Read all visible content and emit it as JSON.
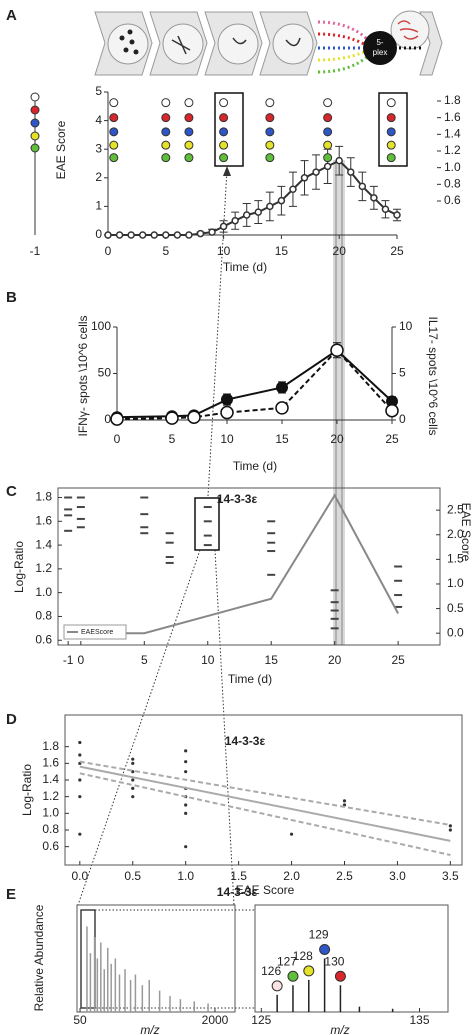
{
  "chart_data": [
    {
      "type": "line",
      "panel": "A",
      "xlabel": "Time (d)",
      "ylabel": "EAE Score",
      "xlim": [
        0,
        25
      ],
      "xticks": [
        0,
        5,
        10,
        15,
        20,
        25
      ],
      "ylim": [
        0,
        5
      ],
      "yticks": [
        0,
        1,
        2,
        3,
        4,
        5
      ],
      "y2lim": [
        0.6,
        1.8
      ],
      "y2ticks": [
        0.6,
        0.8,
        {
          "value": 1.0,
          "label": "1.0"
        },
        1.2,
        1.4,
        1.6,
        1.8
      ],
      "offscale_tick": -1,
      "schematic_label": [
        "5-",
        "plex"
      ],
      "series": [
        {
          "type": "line",
          "color": "#333333",
          "marker": "open",
          "x": [
            0,
            1,
            2,
            3,
            4,
            5,
            6,
            7,
            8,
            9,
            10,
            11,
            12,
            13,
            14,
            15,
            16,
            17,
            18,
            19,
            20,
            21,
            22,
            23,
            24,
            25
          ],
          "values": [
            0,
            0,
            0,
            0,
            0,
            0,
            0,
            0,
            0.05,
            0.1,
            0.3,
            0.5,
            0.7,
            0.8,
            1.0,
            1.2,
            1.6,
            2.0,
            2.2,
            2.4,
            2.6,
            2.2,
            1.7,
            1.3,
            0.9,
            0.7
          ],
          "errors": [
            0,
            0,
            0,
            0,
            0,
            0,
            0,
            0,
            0.05,
            0.1,
            0.2,
            0.3,
            0.4,
            0.4,
            0.5,
            0.5,
            0.6,
            0.6,
            0.6,
            0.6,
            0.5,
            0.5,
            0.5,
            0.4,
            0.3,
            0.2
          ]
        },
        {
          "type": "scatter",
          "color": "#ffffff",
          "marker": "ring",
          "axis": "y2",
          "x": [
            0.5,
            5,
            7,
            10,
            14,
            19,
            24.5
          ],
          "values": [
            1.78,
            1.78,
            1.78,
            1.78,
            1.78,
            1.78,
            1.78
          ]
        },
        {
          "type": "scatter",
          "color": "#d8262a",
          "marker": "ring",
          "axis": "y2",
          "x": [
            0.5,
            5,
            7,
            10,
            14,
            19,
            24.5
          ],
          "values": [
            1.6,
            1.6,
            1.6,
            1.6,
            1.6,
            1.6,
            1.6
          ]
        },
        {
          "type": "scatter",
          "color": "#2f56c8",
          "marker": "ring",
          "axis": "y2",
          "x": [
            0.5,
            5,
            7,
            10,
            14,
            19,
            24.5
          ],
          "values": [
            1.43,
            1.43,
            1.43,
            1.43,
            1.43,
            1.43,
            1.43
          ]
        },
        {
          "type": "scatter",
          "color": "#e5e22a",
          "marker": "ring",
          "axis": "y2",
          "x": [
            0.5,
            5,
            7,
            10,
            14,
            19,
            24.5
          ],
          "values": [
            1.27,
            1.27,
            1.27,
            1.27,
            1.27,
            1.27,
            1.27
          ]
        },
        {
          "type": "scatter",
          "color": "#5fbf3a",
          "marker": "ring",
          "axis": "y2",
          "x": [
            0.5,
            5,
            7,
            10,
            14,
            19,
            24.5
          ],
          "values": [
            1.12,
            1.12,
            1.12,
            1.12,
            1.12,
            1.12,
            1.12
          ]
        }
      ]
    },
    {
      "type": "line",
      "panel": "B",
      "xlabel": "Time (d)",
      "ylabel": "IFNγ- spots \\10^6 cells",
      "y2label": "IL17- spots \\10^6 cells",
      "xlim": [
        0,
        25
      ],
      "xticks": [
        0,
        5,
        10,
        15,
        20,
        25
      ],
      "ylim": [
        0,
        100
      ],
      "yticks": [
        0,
        50,
        100
      ],
      "y2lim": [
        0,
        10
      ],
      "y2ticks": [
        0,
        5,
        10
      ],
      "series": [
        {
          "color": "#111111",
          "marker": "filled",
          "x": [
            0,
            5,
            7,
            10,
            15,
            20,
            25
          ],
          "values": [
            3,
            4,
            5,
            22,
            35,
            75,
            20
          ],
          "errors": [
            3,
            3,
            3,
            6,
            6,
            8,
            5
          ]
        },
        {
          "color": "#111111",
          "dash": true,
          "marker": "open",
          "axis": "y2",
          "x": [
            0,
            5,
            7,
            10,
            15,
            20,
            25
          ],
          "values": [
            0.1,
            0.2,
            0.3,
            0.8,
            1.3,
            7.5,
            1.0
          ]
        }
      ]
    },
    {
      "type": "scatter",
      "panel": "C",
      "title": "14-3-3ε",
      "xlabel": "Time (d)",
      "ylabel": "Log-Ratio",
      "y2label": "EAE Score",
      "xlim": [
        -1.8,
        28.3
      ],
      "xticks": [
        -1,
        0,
        5,
        10,
        15,
        20,
        25
      ],
      "ylim": [
        0.56,
        1.88
      ],
      "yticks": [
        0.6,
        0.8,
        {
          "value": 1.0,
          "label": "1.0"
        },
        1.2,
        1.4,
        1.6,
        1.8
      ],
      "y2lim": [
        -0.24,
        2.95
      ],
      "y2ticks": [
        {
          "value": 0.0,
          "label": "0.0"
        },
        0.5,
        {
          "value": 1.0,
          "label": "1.0"
        },
        1.5,
        {
          "value": 2.0,
          "label": "2.0"
        },
        2.5
      ],
      "legend": "lower left",
      "series": [
        {
          "type": "scatter",
          "color": "#444444",
          "marker": "dash",
          "x": [
            -1,
            -1,
            -1,
            -1,
            0,
            0,
            0,
            0,
            5,
            5,
            5,
            5,
            7,
            7,
            7,
            7,
            10,
            10,
            10,
            10,
            15,
            15,
            15,
            15,
            15,
            20,
            20,
            20,
            20,
            20,
            25,
            25,
            25,
            25
          ],
          "values": [
            1.8,
            1.7,
            1.65,
            1.52,
            1.8,
            1.72,
            1.62,
            1.55,
            1.8,
            1.66,
            1.55,
            1.5,
            1.5,
            1.42,
            1.3,
            1.25,
            1.72,
            1.6,
            1.48,
            1.4,
            1.6,
            1.5,
            1.42,
            1.35,
            1.15,
            1.02,
            0.92,
            0.85,
            0.78,
            0.7,
            1.22,
            1.1,
            0.98,
            0.88
          ]
        },
        {
          "type": "line",
          "name": "EAEScore",
          "color": "#888888",
          "axis": "y2",
          "x": [
            -1,
            5,
            15,
            20,
            25
          ],
          "values": [
            0,
            0,
            0.7,
            2.8,
            0.4
          ]
        }
      ]
    },
    {
      "type": "scatter",
      "panel": "D",
      "title": "14-3-3ε",
      "xlabel": "EAE Score",
      "ylabel": "Log-Ratio",
      "xlim": [
        -0.14,
        3.61
      ],
      "xticks": [
        {
          "value": 0.0,
          "label": "0.0"
        },
        0.5,
        {
          "value": 1.0,
          "label": "1.0"
        },
        1.5,
        {
          "value": 2.0,
          "label": "2.0"
        },
        2.5,
        {
          "value": 3.0,
          "label": "3.0"
        },
        3.5
      ],
      "ylim": [
        0.38,
        2.18
      ],
      "yticks": [
        0.6,
        0.8,
        {
          "value": 1.0,
          "label": "1.0"
        },
        1.2,
        1.4,
        1.6,
        1.8
      ],
      "series": [
        {
          "type": "scatter",
          "color": "#333333",
          "marker": "dot",
          "x": [
            0,
            0,
            0,
            0,
            0,
            0,
            0.5,
            0.5,
            0.5,
            0.5,
            0.5,
            0.5,
            1,
            1,
            1,
            1,
            1,
            1,
            1,
            1,
            2,
            2.5,
            2.5,
            3.5,
            3.5
          ],
          "values": [
            1.85,
            1.7,
            1.6,
            1.4,
            1.2,
            0.75,
            1.65,
            1.6,
            1.5,
            1.4,
            1.3,
            1.2,
            1.75,
            1.62,
            1.5,
            1.3,
            1.2,
            1.1,
            1.0,
            0.6,
            0.75,
            1.15,
            1.1,
            0.85,
            0.8
          ]
        },
        {
          "type": "line",
          "color": "#aaaaaa",
          "x": [
            0,
            3.5
          ],
          "values": [
            1.56,
            0.67
          ]
        },
        {
          "type": "line",
          "color": "#aaaaaa",
          "dash": true,
          "x": [
            0,
            3.5
          ],
          "values": [
            1.62,
            0.86
          ]
        },
        {
          "type": "line",
          "color": "#aaaaaa",
          "dash": true,
          "x": [
            0,
            3.5
          ],
          "values": [
            1.48,
            0.5
          ]
        }
      ]
    },
    {
      "type": "stem",
      "panel": "E",
      "title": "14-3-3ε",
      "xlabel": "m/z",
      "ylabel": "Relative Abundance",
      "xlim": [
        6,
        2289
      ],
      "xticks": [
        50,
        2000
      ],
      "ylim": [
        0,
        1
      ],
      "series": [
        {
          "color": "#999999",
          "x": [
            150,
            200,
            260,
            300,
            350,
            400,
            450,
            500,
            560,
            620,
            700,
            780,
            850,
            950,
            1050,
            1200,
            1350,
            1500,
            1700,
            1900
          ],
          "values": [
            0.8,
            0.55,
            0.7,
            0.5,
            0.65,
            0.4,
            0.6,
            0.45,
            0.5,
            0.35,
            0.4,
            0.3,
            0.35,
            0.25,
            0.3,
            0.2,
            0.15,
            0.12,
            0.1,
            0.08
          ]
        }
      ]
    },
    {
      "type": "stem",
      "xlabel": "m/z",
      "xlim": [
        124.6,
        136.8
      ],
      "xticks": [
        125,
        135
      ],
      "ylim": [
        0,
        1
      ],
      "series": [
        {
          "color": "#222222",
          "labeled": true,
          "point_colors": [
            "#fbe3e3",
            "#5fbf3a",
            "#e5e22a",
            "#2f56c8",
            "#d8262a"
          ],
          "x": [
            126,
            127,
            128,
            129,
            130
          ],
          "values": [
            0.16,
            0.25,
            0.3,
            0.5,
            0.25
          ]
        },
        {
          "color": "#222222",
          "x": [
            131.2,
            133.3
          ],
          "values": [
            0.05,
            0.03
          ]
        }
      ]
    }
  ]
}
